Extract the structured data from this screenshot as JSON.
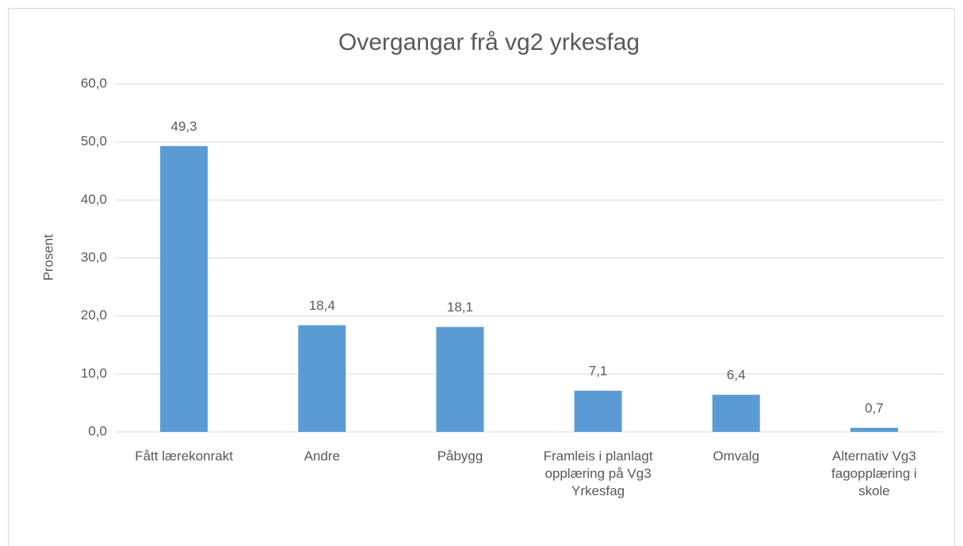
{
  "chart_data": {
    "type": "bar",
    "title": "Overgangar frå vg2 yrkesfag",
    "y_label": "Prosent",
    "categories": [
      "Fått lærekonrakt",
      "Andre",
      "Påbygg",
      "Framleis i planlagt opplæring på Vg3 Yrkesfag",
      "Omvalg",
      "Alternativ Vg3 fagopplæring i skole"
    ],
    "values": [
      49.3,
      18.4,
      18.1,
      7.1,
      6.4,
      0.7
    ],
    "value_labels": [
      "49,3",
      "18,4",
      "18,1",
      "7,1",
      "6,4",
      "0,7"
    ],
    "color": "#5b9bd5",
    "ylim": [
      0,
      60
    ],
    "yticks": [
      {
        "value": 0,
        "label": "0,0"
      },
      {
        "value": 10,
        "label": "10,0"
      },
      {
        "value": 20,
        "label": "20,0"
      },
      {
        "value": 30,
        "label": "30,0"
      },
      {
        "value": 40,
        "label": "40,0"
      },
      {
        "value": 50,
        "label": "50,0"
      },
      {
        "value": 60,
        "label": "60,0"
      }
    ],
    "grid": true
  }
}
